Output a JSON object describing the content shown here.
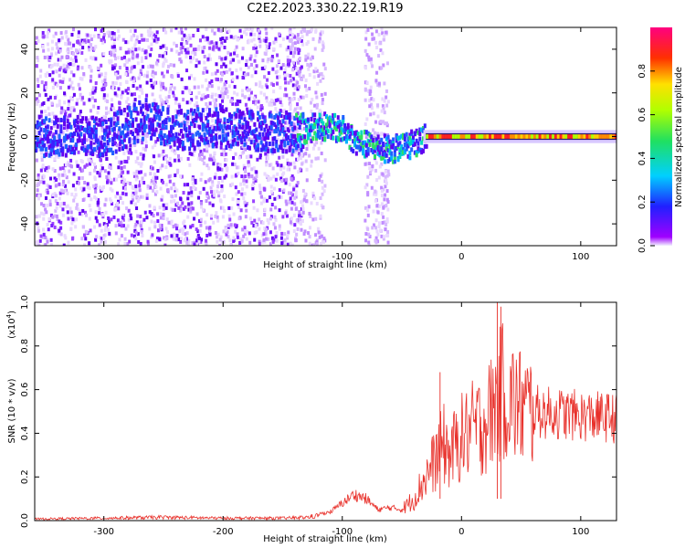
{
  "title": "C2E2.2023.330.22.19.R19",
  "chart_data": [
    {
      "type": "heatmap",
      "xlabel": "Height of straight line (km)",
      "ylabel": "Frequency (Hz)",
      "xlim": [
        -358,
        130
      ],
      "ylim": [
        -50,
        50
      ],
      "x_ticks": [
        -300,
        -200,
        -100,
        0,
        100
      ],
      "y_ticks": [
        -40,
        -20,
        0,
        20,
        40
      ],
      "colorbar": {
        "label": "Normalized spectral amplitude",
        "range": [
          0.0,
          1.0
        ],
        "ticks": [
          "0.0",
          "0.2",
          "0.4",
          "0.6",
          "0.8"
        ]
      },
      "ridge": {
        "x": [
          -358,
          -300,
          -265,
          -240,
          -200,
          -160,
          -140,
          -120,
          -100,
          -90,
          -80,
          -70,
          -60,
          -50,
          -40,
          -30,
          -10,
          0,
          20,
          40,
          60,
          100,
          130
        ],
        "y": [
          0,
          0,
          8,
          3,
          4,
          2,
          2,
          5,
          3,
          -2,
          -4,
          -5,
          -6,
          -5,
          -3,
          0,
          1,
          1,
          0.5,
          0,
          0,
          0,
          0
        ]
      }
    },
    {
      "type": "line",
      "xlabel": "Height of straight line (km)",
      "ylabel": "SNR (10 * v/v)",
      "y_multiplier": "(x10",
      "y_multiplier_exp": "4",
      "y_multiplier_close": ")",
      "xlim": [
        -358,
        130
      ],
      "ylim": [
        0.0,
        1.0
      ],
      "x_ticks": [
        -300,
        -200,
        -100,
        0,
        100
      ],
      "y_ticks": [
        "0.0",
        "0.2",
        "0.4",
        "0.6",
        "0.8",
        "1.0"
      ],
      "color": "#e8302a",
      "envelope": {
        "x": [
          -358,
          -300,
          -250,
          -200,
          -150,
          -130,
          -110,
          -100,
          -90,
          -80,
          -70,
          -60,
          -50,
          -40,
          -30,
          -20,
          -15,
          -10,
          0,
          10,
          20,
          30,
          35,
          40,
          50,
          60,
          80,
          100,
          130
        ],
        "y": [
          0.01,
          0.015,
          0.02,
          0.015,
          0.015,
          0.02,
          0.04,
          0.08,
          0.12,
          0.1,
          0.05,
          0.06,
          0.05,
          0.1,
          0.2,
          0.3,
          0.35,
          0.3,
          0.38,
          0.42,
          0.45,
          0.55,
          0.6,
          0.55,
          0.52,
          0.5,
          0.49,
          0.48,
          0.47
        ]
      },
      "peaks": [
        {
          "x": -18,
          "y": 0.68
        },
        {
          "x": 30,
          "y": 1.0
        },
        {
          "x": 33,
          "y": 0.98
        }
      ]
    }
  ]
}
